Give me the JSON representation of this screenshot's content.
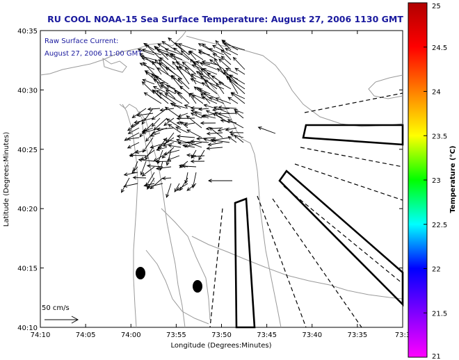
{
  "title": "RU COOL  NOAA-15  Sea Surface Temperature:  August 27, 2006 1130 GMT",
  "annotation": {
    "line1": "Raw Surface Current:",
    "line2": "August 27, 2006 11:00 GMT"
  },
  "scale_label": "50 cm/s",
  "x_axis": {
    "label": "Longitude (Degrees:Minutes)",
    "ticks": [
      "74:10",
      "74:05",
      "74:00",
      "73:55",
      "73:50",
      "73:45",
      "73:40",
      "73:35",
      "73:3"
    ]
  },
  "y_axis": {
    "label": "Latitude (Degrees:Minutes)",
    "ticks": [
      "40:35",
      "40:30",
      "40:25",
      "40:20",
      "40:15",
      "40:10"
    ]
  },
  "colorbar": {
    "label": "Temperature (°C)",
    "ticks": [
      "25",
      "24.5",
      "24",
      "23.5",
      "23",
      "22.5",
      "22",
      "21.5",
      "21"
    ],
    "colors": [
      "#b00000",
      "#ff0000",
      "#ff8000",
      "#ffff00",
      "#00ff00",
      "#00ffff",
      "#0000ff",
      "#8000ff",
      "#ff00ff"
    ]
  },
  "colors": {
    "title": "#1a1a9e",
    "contour": "#9a9a9a",
    "arrows": "#000000"
  }
}
